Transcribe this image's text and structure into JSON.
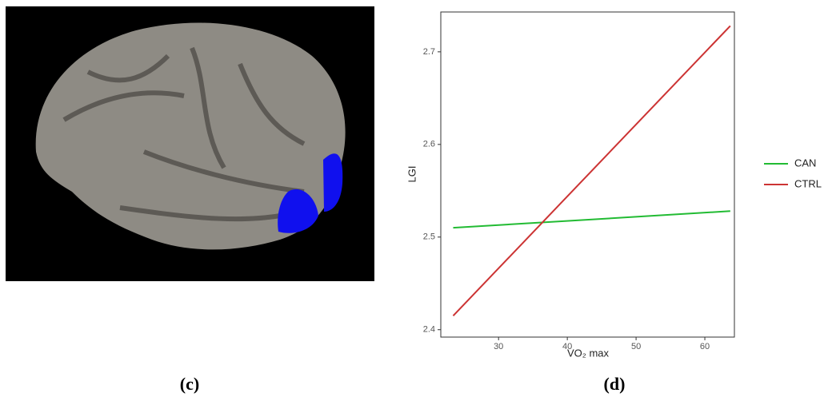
{
  "chart_data": {
    "type": "line",
    "xlabel": "VO₂ max",
    "ylabel": "LGI",
    "x": [
      23.4,
      63.7
    ],
    "series": [
      {
        "name": "CAN",
        "color": "#22bb33",
        "values": [
          2.51,
          2.528
        ]
      },
      {
        "name": "CTRL",
        "color": "#cc3333",
        "values": [
          2.415,
          2.728
        ]
      }
    ],
    "xlim": [
      21.6,
      64.3
    ],
    "xticks": [
      30,
      40,
      50,
      60
    ],
    "ylim": [
      2.392,
      2.743
    ],
    "yticks": [
      2.4,
      2.5,
      2.6,
      2.7
    ],
    "grid": false,
    "legend": "right"
  },
  "captions": {
    "left": "(c)",
    "right": "(d)"
  }
}
